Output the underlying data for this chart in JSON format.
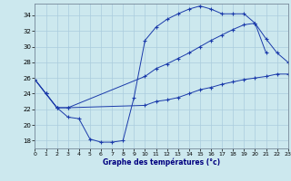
{
  "xlabel": "Graphe des températures (°c)",
  "background_color": "#cce8ee",
  "grid_color": "#aaccdd",
  "line_color": "#1a3aaa",
  "xlim": [
    0,
    23
  ],
  "ylim": [
    17,
    35.5
  ],
  "yticks": [
    18,
    20,
    22,
    24,
    26,
    28,
    30,
    32,
    34
  ],
  "xticks": [
    0,
    1,
    2,
    3,
    4,
    5,
    6,
    7,
    8,
    9,
    10,
    11,
    12,
    13,
    14,
    15,
    16,
    17,
    18,
    19,
    20,
    21,
    22,
    23
  ],
  "line1_x": [
    0,
    1,
    2,
    3,
    4,
    5,
    6,
    7,
    8,
    9,
    10,
    11,
    12,
    13,
    14,
    15,
    16,
    17,
    18,
    19,
    20,
    21
  ],
  "line1_y": [
    25.8,
    24.0,
    22.2,
    21.0,
    20.8,
    18.2,
    17.8,
    17.8,
    18.0,
    23.5,
    30.8,
    32.5,
    33.5,
    34.2,
    34.8,
    35.2,
    34.8,
    34.2,
    34.2,
    34.2,
    33.0,
    29.2
  ],
  "line2_x": [
    0,
    1,
    2,
    3,
    10,
    11,
    12,
    13,
    14,
    15,
    16,
    17,
    18,
    19,
    20,
    21,
    22,
    23
  ],
  "line2_y": [
    25.8,
    24.0,
    22.2,
    22.2,
    26.2,
    27.2,
    27.8,
    28.5,
    29.2,
    30.0,
    30.8,
    31.5,
    32.2,
    32.8,
    33.0,
    31.0,
    29.2,
    28.0
  ],
  "line3_x": [
    0,
    1,
    2,
    3,
    10,
    11,
    12,
    13,
    14,
    15,
    16,
    17,
    18,
    19,
    20,
    21,
    22,
    23
  ],
  "line3_y": [
    25.8,
    24.0,
    22.2,
    22.2,
    22.5,
    23.0,
    23.2,
    23.5,
    24.0,
    24.5,
    24.8,
    25.2,
    25.5,
    25.8,
    26.0,
    26.2,
    26.5,
    26.5
  ]
}
